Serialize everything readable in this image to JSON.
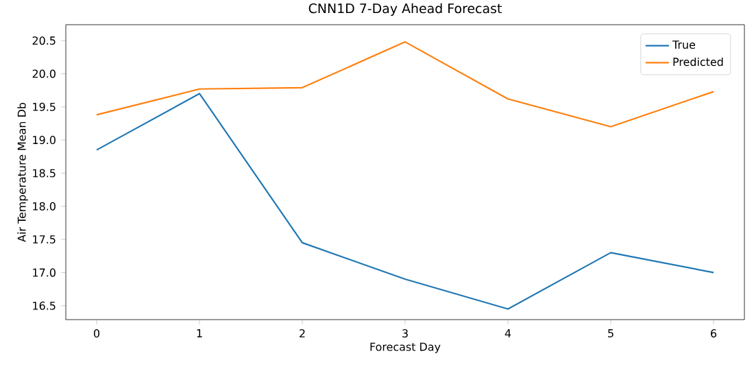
{
  "chart_data": {
    "type": "line",
    "title": "CNN1D 7-Day Ahead Forecast",
    "xlabel": "Forecast Day",
    "ylabel": "Air Temperature Mean Db",
    "x": [
      0,
      1,
      2,
      3,
      4,
      5,
      6
    ],
    "series": [
      {
        "name": "True",
        "color": "#1f77b4",
        "values": [
          18.85,
          19.7,
          17.45,
          16.9,
          16.45,
          17.3,
          17.0
        ]
      },
      {
        "name": "Predicted",
        "color": "#ff7f0e",
        "values": [
          19.38,
          19.77,
          19.79,
          20.48,
          19.62,
          19.2,
          19.73
        ]
      }
    ],
    "xlim": [
      -0.3,
      6.3
    ],
    "ylim": [
      16.29,
      20.74
    ],
    "xticks": [
      0,
      1,
      2,
      3,
      4,
      5,
      6
    ],
    "yticks": [
      {
        "value": 16.5,
        "label": "16.5"
      },
      {
        "value": 17,
        "label": "17.0"
      },
      {
        "value": 17.5,
        "label": "17.5"
      },
      {
        "value": 18,
        "label": "18.0"
      },
      {
        "value": 18.5,
        "label": "18.5"
      },
      {
        "value": 19,
        "label": "19.0"
      },
      {
        "value": 19.5,
        "label": "19.5"
      },
      {
        "value": 20,
        "label": "20.0"
      },
      {
        "value": 20.5,
        "label": "20.5"
      }
    ],
    "legend": "top right",
    "grid": false,
    "marker": "none",
    "line_style": "solid"
  }
}
